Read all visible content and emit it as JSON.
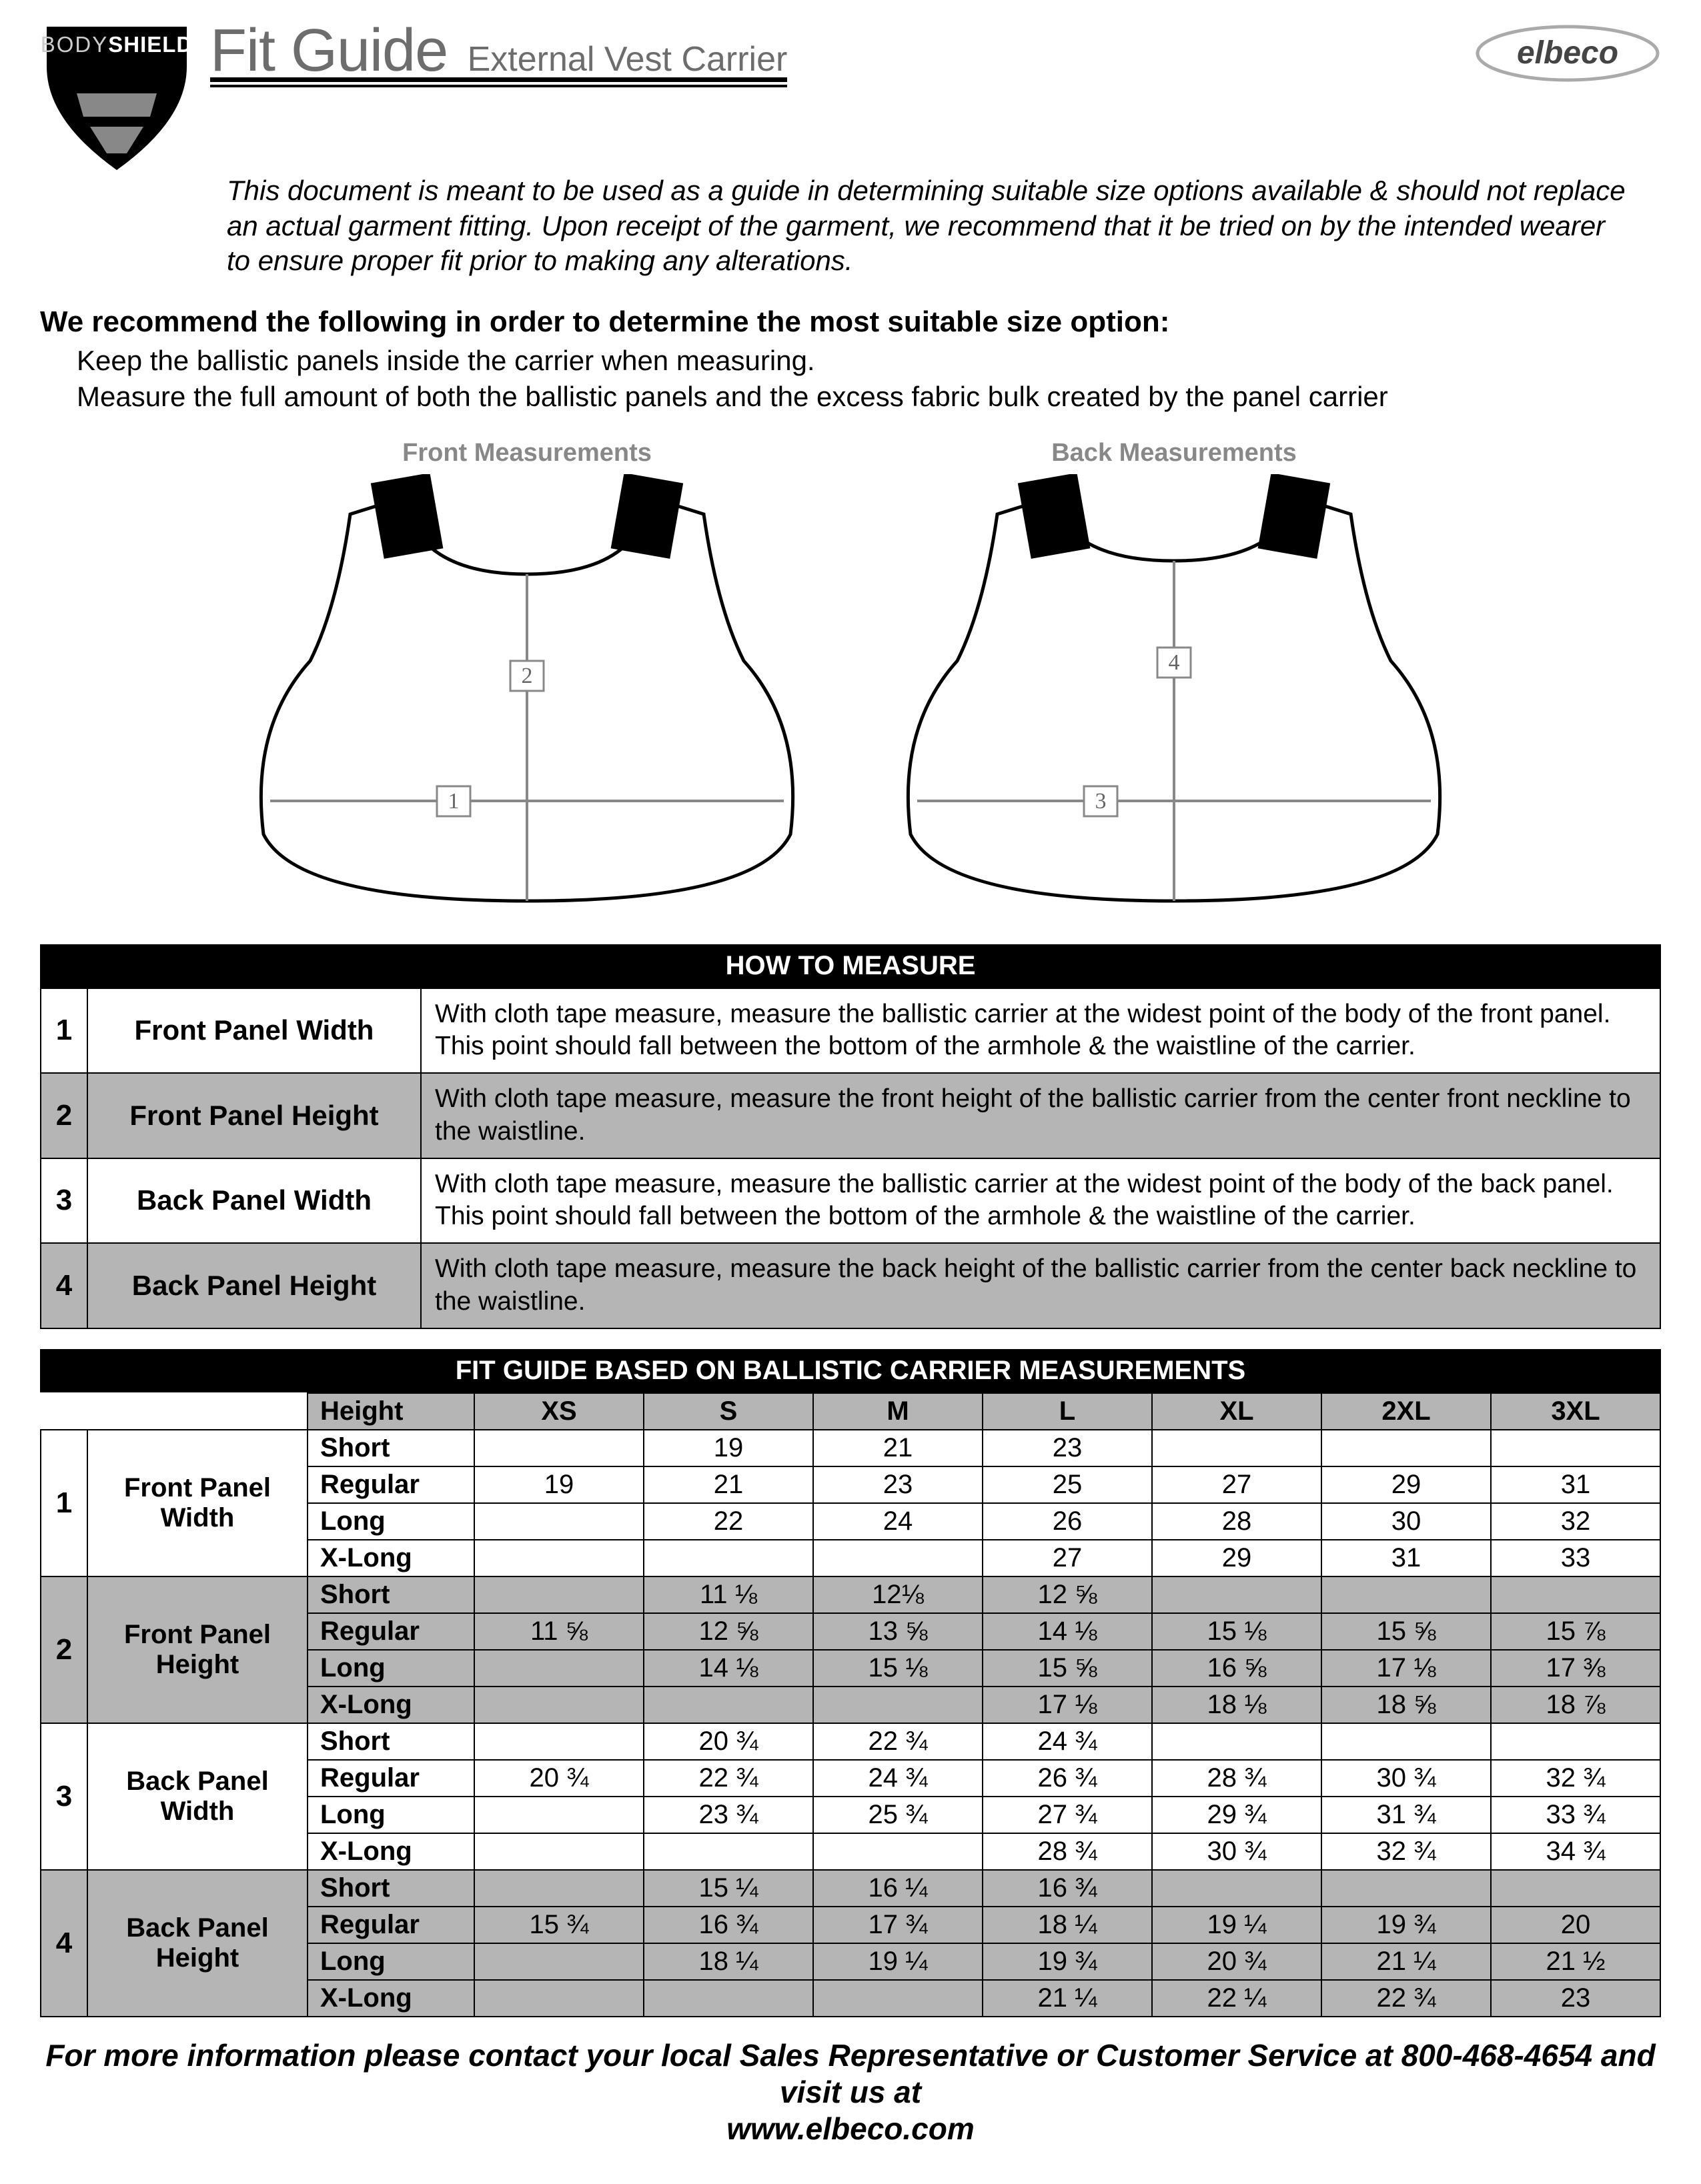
{
  "header": {
    "brand_line1": "BODY",
    "brand_line2": "SHIELD",
    "title": "Fit Guide",
    "subtitle": "External Vest Carrier",
    "company": "elbeco"
  },
  "intro": "This document is meant to be used as a guide in determining suitable size options available & should not replace an actual garment fitting. Upon receipt of the garment, we recommend that it be tried on by the intended wearer to ensure proper fit prior to making any alterations.",
  "rec": {
    "lead": "We recommend the following in order to determine the most suitable size option:",
    "b1": "Keep the ballistic panels inside the carrier when measuring.",
    "b2": "Measure the full amount of both the ballistic panels and the excess fabric bulk created by the panel carrier"
  },
  "diagrams": {
    "front_label": "Front Measurements",
    "back_label": "Back Measurements",
    "front_h": "2",
    "front_w": "1",
    "back_h": "4",
    "back_w": "3"
  },
  "howto": {
    "header": "HOW TO MEASURE",
    "rows": [
      {
        "n": "1",
        "name": "Front Panel Width",
        "desc": "With cloth tape measure, measure the ballistic carrier at the widest point of the body of the front panel. This point should fall between the bottom of the armhole & the waistline of the carrier."
      },
      {
        "n": "2",
        "name": "Front Panel Height",
        "desc": "With cloth tape measure, measure the front height of the ballistic carrier from the center front neckline to the waistline."
      },
      {
        "n": "3",
        "name": "Back Panel Width",
        "desc": "With cloth tape measure, measure the ballistic carrier at the widest point of the body of the back panel. This point should fall between the bottom of the armhole & the waistline of the carrier."
      },
      {
        "n": "4",
        "name": "Back Panel Height",
        "desc": "With cloth tape measure, measure the back height of the ballistic carrier from the center back neckline to the waistline."
      }
    ]
  },
  "fit": {
    "header": "FIT GUIDE BASED ON BALLISTIC CARRIER MEASUREMENTS",
    "height_label": "Height",
    "sizes": [
      "XS",
      "S",
      "M",
      "L",
      "XL",
      "2XL",
      "3XL"
    ],
    "lengths": [
      "Short",
      "Regular",
      "Long",
      "X-Long"
    ],
    "groups": [
      {
        "n": "1",
        "name": "Front Panel Width",
        "grey": false,
        "rows": [
          [
            "",
            "19",
            "21",
            "23",
            "",
            "",
            ""
          ],
          [
            "19",
            "21",
            "23",
            "25",
            "27",
            "29",
            "31"
          ],
          [
            "",
            "22",
            "24",
            "26",
            "28",
            "30",
            "32"
          ],
          [
            "",
            "",
            "",
            "27",
            "29",
            "31",
            "33"
          ]
        ]
      },
      {
        "n": "2",
        "name": "Front Panel Height",
        "grey": true,
        "rows": [
          [
            "",
            "11 ⅛",
            "12⅛",
            "12 ⅝",
            "",
            "",
            ""
          ],
          [
            "11 ⅝",
            "12 ⅝",
            "13 ⅝",
            "14 ⅛",
            "15 ⅛",
            "15 ⅝",
            "15 ⅞"
          ],
          [
            "",
            "14 ⅛",
            "15 ⅛",
            "15 ⅝",
            "16 ⅝",
            "17 ⅛",
            "17 ⅜"
          ],
          [
            "",
            "",
            "",
            "17 ⅛",
            "18 ⅛",
            "18 ⅝",
            "18 ⅞"
          ]
        ]
      },
      {
        "n": "3",
        "name": "Back Panel Width",
        "grey": false,
        "rows": [
          [
            "",
            "20 ¾",
            "22 ¾",
            "24 ¾",
            "",
            "",
            ""
          ],
          [
            "20 ¾",
            "22 ¾",
            "24 ¾",
            "26 ¾",
            "28 ¾",
            "30 ¾",
            "32 ¾"
          ],
          [
            "",
            "23 ¾",
            "25 ¾",
            "27 ¾",
            "29 ¾",
            "31 ¾",
            "33 ¾"
          ],
          [
            "",
            "",
            "",
            "28 ¾",
            "30 ¾",
            "32 ¾",
            "34 ¾"
          ]
        ]
      },
      {
        "n": "4",
        "name": "Back Panel Height",
        "grey": true,
        "rows": [
          [
            "",
            "15 ¼",
            "16 ¼",
            "16 ¾",
            "",
            "",
            ""
          ],
          [
            "15 ¾",
            "16 ¾",
            "17 ¾",
            "18 ¼",
            "19 ¼",
            "19 ¾",
            "20"
          ],
          [
            "",
            "18 ¼",
            "19 ¼",
            "19 ¾",
            "20 ¾",
            "21 ¼",
            "21 ½"
          ],
          [
            "",
            "",
            "",
            "21 ¼",
            "22 ¼",
            "22 ¾",
            "23"
          ]
        ]
      }
    ]
  },
  "footer": {
    "l1": "For more information please contact your local Sales Representative or Customer Service at 800-468-4654 and visit us at",
    "l2": "www.elbeco.com"
  },
  "colors": {
    "grey": "#b5b5b5",
    "text_grey": "#6d6d6d"
  }
}
